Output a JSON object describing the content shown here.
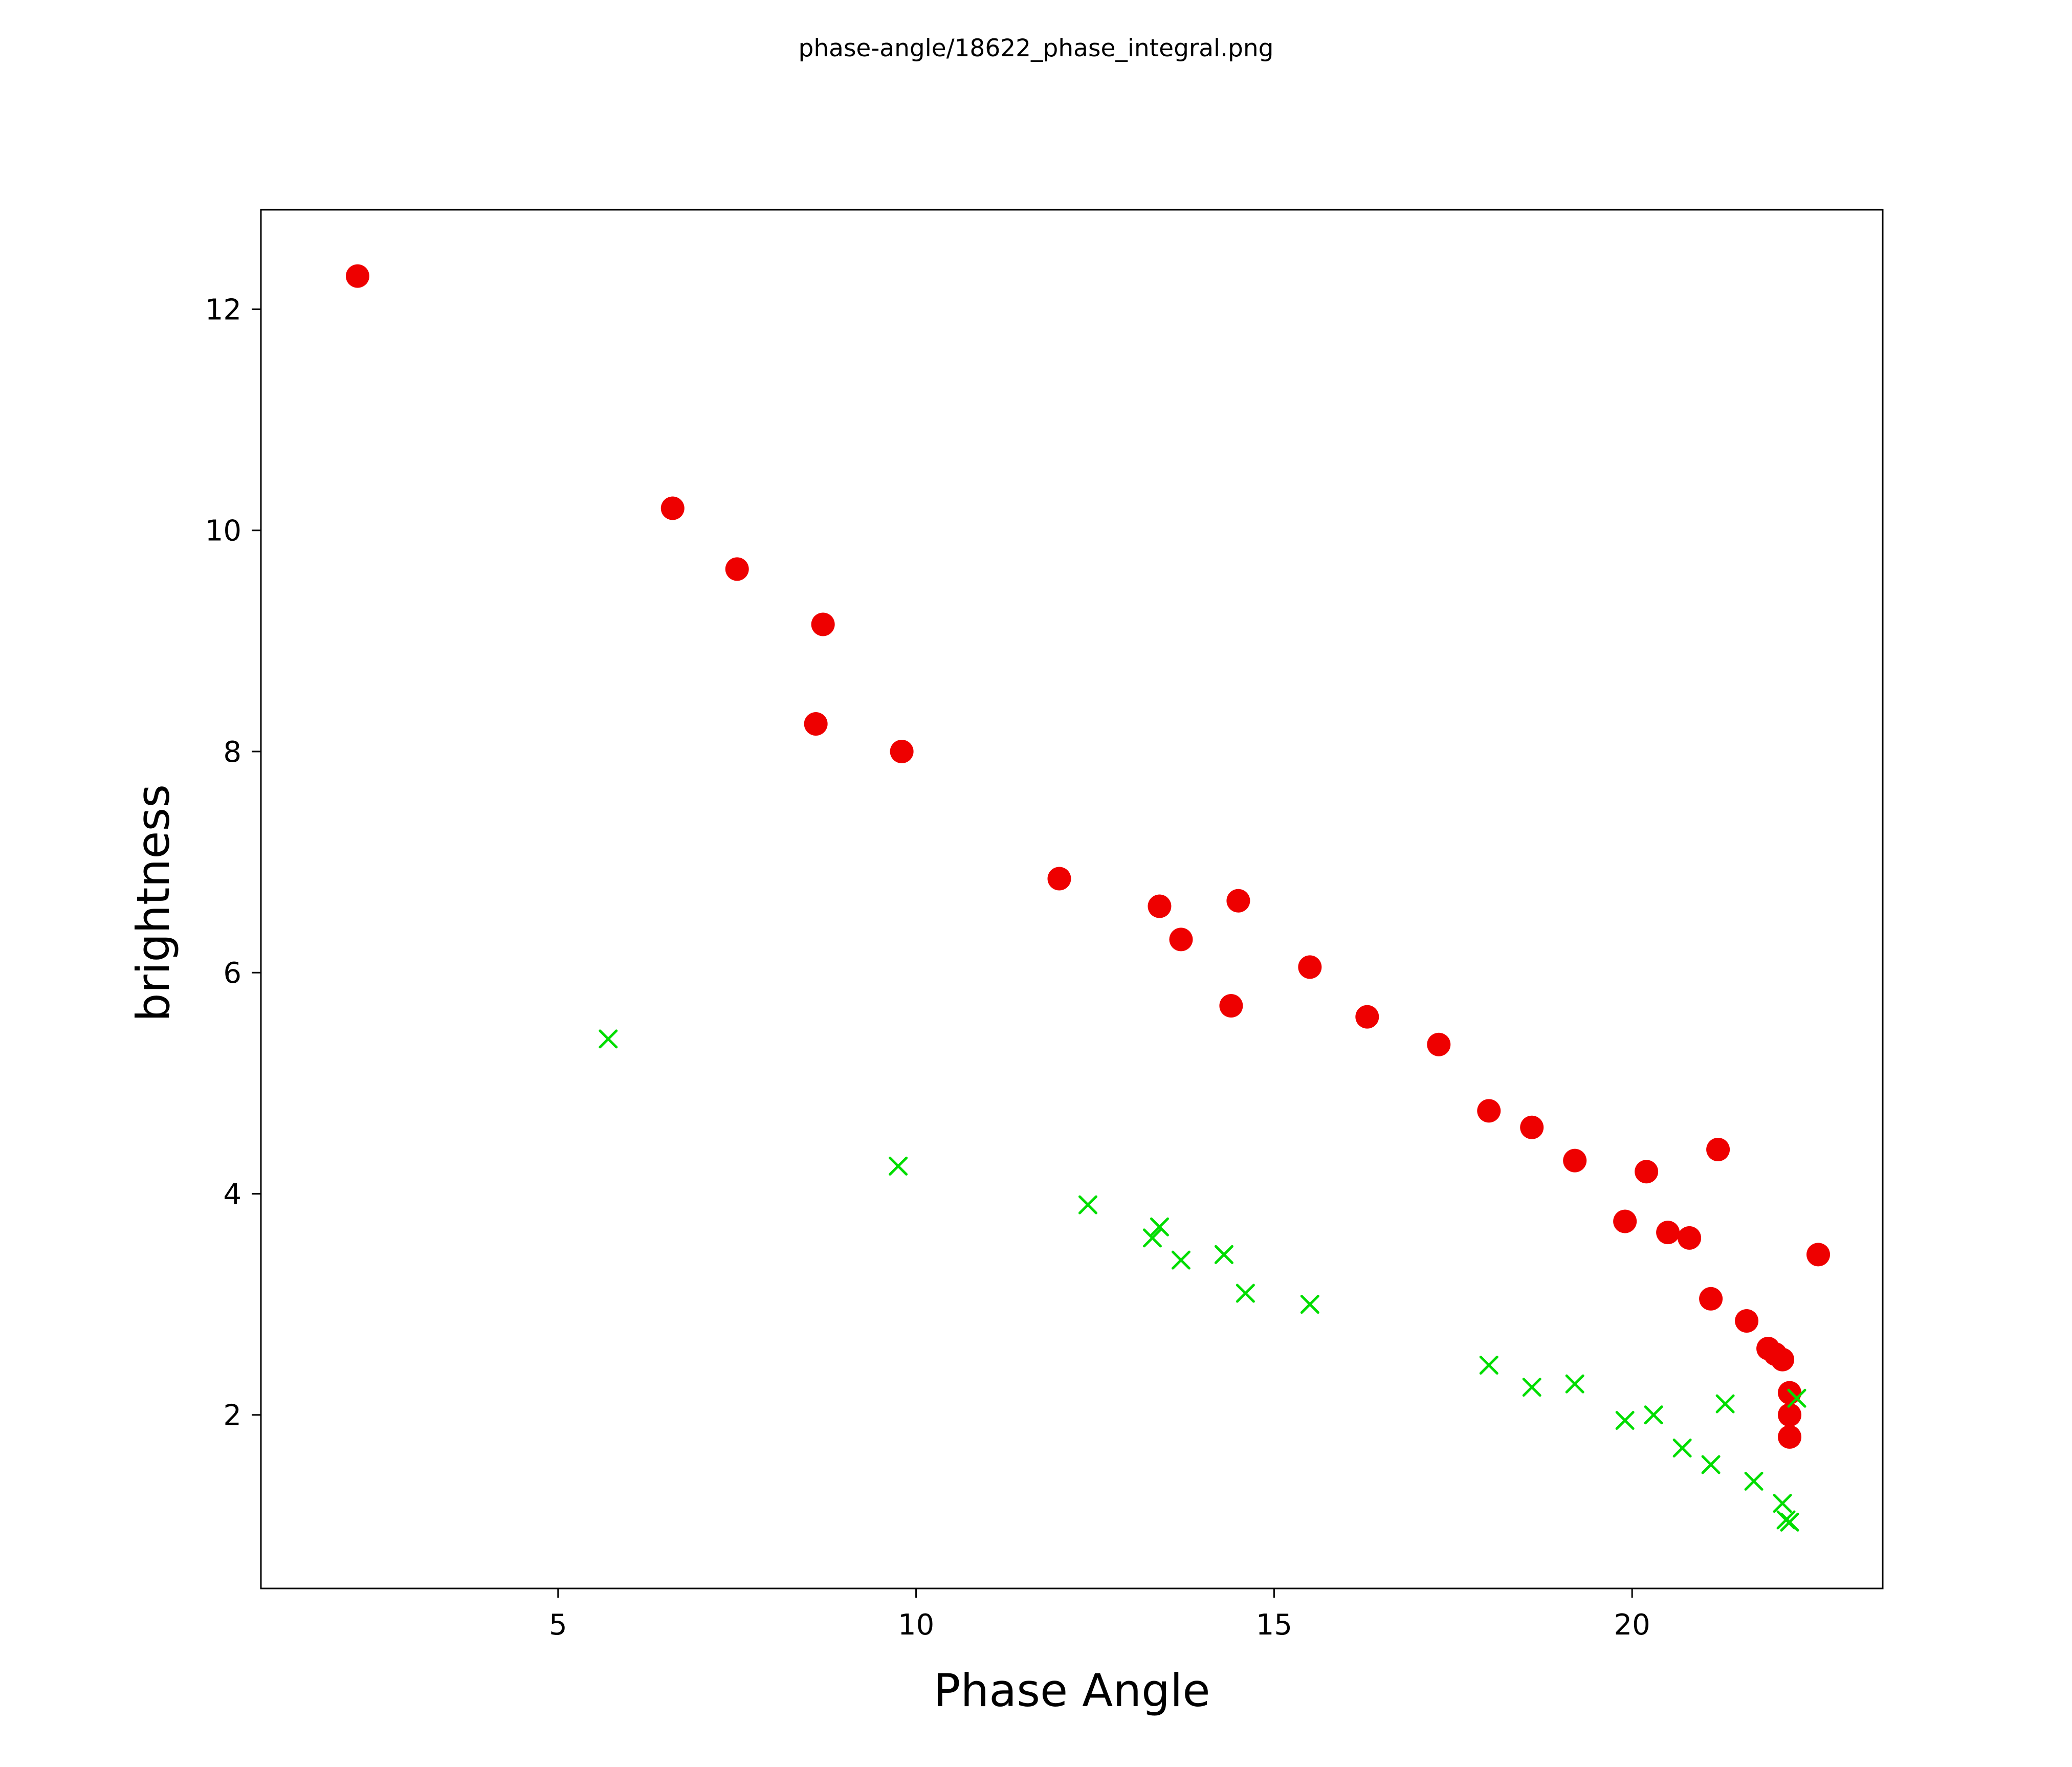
{
  "chart_data": {
    "type": "scatter",
    "title": "phase-angle/18622_phase_integral.png",
    "xlabel": "Phase Angle",
    "ylabel": "brightness",
    "xlim": [
      0.85,
      23.5
    ],
    "ylim": [
      0.43,
      12.9
    ],
    "x_ticks": [
      5,
      10,
      15,
      20
    ],
    "y_ticks": [
      2,
      4,
      6,
      8,
      10,
      12
    ],
    "grid": false,
    "legend": "none",
    "series": [
      {
        "name": "red-filled-circles",
        "marker": "circle",
        "color": "#ee0000",
        "points": [
          [
            2.2,
            12.3
          ],
          [
            6.6,
            10.2
          ],
          [
            7.5,
            9.65
          ],
          [
            8.7,
            9.15
          ],
          [
            8.6,
            8.25
          ],
          [
            9.8,
            8.0
          ],
          [
            12.0,
            6.85
          ],
          [
            13.4,
            6.6
          ],
          [
            13.7,
            6.3
          ],
          [
            14.5,
            6.65
          ],
          [
            14.4,
            5.7
          ],
          [
            15.5,
            6.05
          ],
          [
            16.3,
            5.6
          ],
          [
            17.3,
            5.35
          ],
          [
            18.0,
            4.75
          ],
          [
            18.6,
            4.6
          ],
          [
            19.2,
            4.3
          ],
          [
            19.9,
            3.75
          ],
          [
            20.2,
            4.2
          ],
          [
            20.5,
            3.65
          ],
          [
            20.8,
            3.6
          ],
          [
            21.2,
            4.4
          ],
          [
            21.1,
            3.05
          ],
          [
            21.6,
            2.85
          ],
          [
            21.9,
            2.6
          ],
          [
            22.0,
            2.55
          ],
          [
            22.1,
            2.5
          ],
          [
            22.2,
            2.2
          ],
          [
            22.2,
            2.0
          ],
          [
            22.2,
            1.8
          ],
          [
            22.6,
            3.45
          ]
        ]
      },
      {
        "name": "green-x-markers",
        "marker": "x",
        "color": "#00dd00",
        "points": [
          [
            5.7,
            5.4
          ],
          [
            9.75,
            4.25
          ],
          [
            12.4,
            3.9
          ],
          [
            13.4,
            3.7
          ],
          [
            13.3,
            3.6
          ],
          [
            13.7,
            3.4
          ],
          [
            14.3,
            3.45
          ],
          [
            14.6,
            3.1
          ],
          [
            15.5,
            3.0
          ],
          [
            18.0,
            2.45
          ],
          [
            18.6,
            2.25
          ],
          [
            19.2,
            2.28
          ],
          [
            19.9,
            1.95
          ],
          [
            20.3,
            2.0
          ],
          [
            20.7,
            1.7
          ],
          [
            21.1,
            1.55
          ],
          [
            21.3,
            2.1
          ],
          [
            21.7,
            1.4
          ],
          [
            22.1,
            1.2
          ],
          [
            22.15,
            1.05
          ],
          [
            22.2,
            1.03
          ],
          [
            22.3,
            2.15
          ]
        ]
      }
    ]
  }
}
